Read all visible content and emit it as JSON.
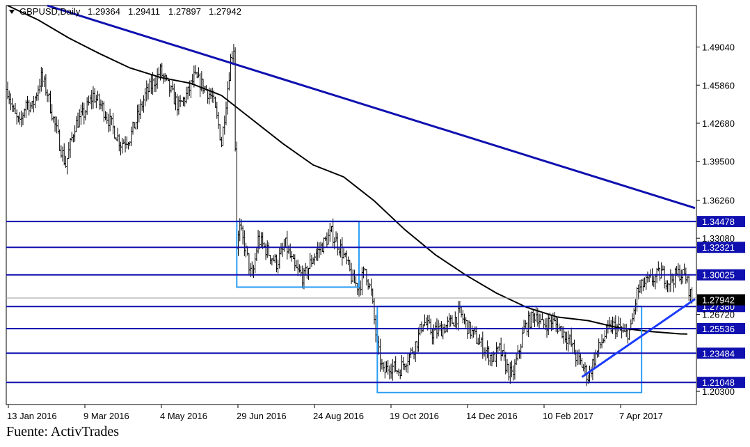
{
  "chart_data": {
    "type": "candlestick",
    "header": {
      "symbol": "GBPUSD,Daily",
      "open": "1.29364",
      "high": "1.29411",
      "low": "1.27897",
      "close": "1.27942"
    },
    "x_tick_labels": [
      "13 Jan 2016",
      "9 Mar 2016",
      "4 May 2016",
      "29 Jun 2016",
      "24 Aug 2016",
      "19 Oct 2016",
      "14 Dec 2016",
      "10 Feb 2017",
      "7 Apr 2017"
    ],
    "y_tick_labels": [
      "1.49040",
      "1.45860",
      "1.42680",
      "1.39500",
      "1.36260",
      "1.33080",
      "1.26720",
      "1.20300"
    ],
    "horizontal_levels": [
      "1.34478",
      "1.32321",
      "1.30025",
      "1.27380",
      "1.25536",
      "1.23484",
      "1.21048"
    ],
    "current_price": "1.27942",
    "ylim": [
      1.192,
      1.525
    ],
    "price_path": [
      [
        0,
        1.455
      ],
      [
        4,
        1.435
      ],
      [
        8,
        1.425
      ],
      [
        12,
        1.445
      ],
      [
        16,
        1.44
      ],
      [
        22,
        1.465
      ],
      [
        26,
        1.452
      ],
      [
        30,
        1.43
      ],
      [
        34,
        1.41
      ],
      [
        38,
        1.392
      ],
      [
        44,
        1.425
      ],
      [
        50,
        1.435
      ],
      [
        56,
        1.45
      ],
      [
        62,
        1.44
      ],
      [
        68,
        1.425
      ],
      [
        74,
        1.41
      ],
      [
        80,
        1.415
      ],
      [
        86,
        1.435
      ],
      [
        90,
        1.45
      ],
      [
        96,
        1.462
      ],
      [
        100,
        1.47
      ],
      [
        106,
        1.455
      ],
      [
        112,
        1.44
      ],
      [
        118,
        1.452
      ],
      [
        122,
        1.465
      ],
      [
        128,
        1.458
      ],
      [
        134,
        1.448
      ],
      [
        138,
        1.425
      ],
      [
        140,
        1.41
      ],
      [
        143,
        1.445
      ],
      [
        146,
        1.48
      ],
      [
        148,
        1.49
      ],
      [
        150,
        1.325
      ],
      [
        152,
        1.338
      ],
      [
        156,
        1.32
      ],
      [
        160,
        1.296
      ],
      [
        164,
        1.33
      ],
      [
        170,
        1.32
      ],
      [
        176,
        1.31
      ],
      [
        182,
        1.325
      ],
      [
        188,
        1.305
      ],
      [
        194,
        1.298
      ],
      [
        200,
        1.315
      ],
      [
        206,
        1.325
      ],
      [
        212,
        1.335
      ],
      [
        218,
        1.322
      ],
      [
        222,
        1.31
      ],
      [
        226,
        1.295
      ],
      [
        230,
        1.29
      ],
      [
        234,
        1.305
      ],
      [
        238,
        1.285
      ],
      [
        242,
        1.24
      ],
      [
        246,
        1.218
      ],
      [
        250,
        1.225
      ],
      [
        256,
        1.22
      ],
      [
        260,
        1.228
      ],
      [
        264,
        1.235
      ],
      [
        268,
        1.245
      ],
      [
        272,
        1.262
      ],
      [
        278,
        1.252
      ],
      [
        284,
        1.255
      ],
      [
        290,
        1.26
      ],
      [
        296,
        1.268
      ],
      [
        302,
        1.255
      ],
      [
        308,
        1.245
      ],
      [
        314,
        1.235
      ],
      [
        318,
        1.23
      ],
      [
        322,
        1.238
      ],
      [
        326,
        1.225
      ],
      [
        330,
        1.215
      ],
      [
        334,
        1.232
      ],
      [
        338,
        1.255
      ],
      [
        342,
        1.262
      ],
      [
        346,
        1.268
      ],
      [
        350,
        1.258
      ],
      [
        356,
        1.262
      ],
      [
        362,
        1.255
      ],
      [
        368,
        1.245
      ],
      [
        372,
        1.232
      ],
      [
        376,
        1.225
      ],
      [
        380,
        1.215
      ],
      [
        384,
        1.23
      ],
      [
        388,
        1.242
      ],
      [
        392,
        1.252
      ],
      [
        396,
        1.258
      ],
      [
        400,
        1.255
      ],
      [
        404,
        1.25
      ],
      [
        408,
        1.255
      ],
      [
        412,
        1.285
      ],
      [
        416,
        1.292
      ],
      [
        420,
        1.295
      ],
      [
        424,
        1.298
      ],
      [
        428,
        1.302
      ],
      [
        432,
        1.295
      ],
      [
        436,
        1.298
      ],
      [
        440,
        1.302
      ],
      [
        444,
        1.298
      ],
      [
        448,
        1.2794
      ]
    ],
    "ma_path": [
      [
        0,
        1.525
      ],
      [
        20,
        1.513
      ],
      [
        40,
        1.498
      ],
      [
        60,
        1.485
      ],
      [
        80,
        1.473
      ],
      [
        100,
        1.465
      ],
      [
        120,
        1.46
      ],
      [
        140,
        1.45
      ],
      [
        160,
        1.43
      ],
      [
        180,
        1.41
      ],
      [
        200,
        1.392
      ],
      [
        220,
        1.382
      ],
      [
        240,
        1.362
      ],
      [
        260,
        1.338
      ],
      [
        280,
        1.317
      ],
      [
        300,
        1.3
      ],
      [
        320,
        1.285
      ],
      [
        340,
        1.273
      ],
      [
        360,
        1.265
      ],
      [
        380,
        1.262
      ],
      [
        400,
        1.256
      ],
      [
        420,
        1.253
      ],
      [
        440,
        1.251
      ],
      [
        445,
        1.2508
      ]
    ],
    "trendlines": [
      {
        "from": [
          26,
          1.525
        ],
        "to": [
          450,
          1.356
        ],
        "color": "#1010b0"
      },
      {
        "from": [
          376,
          1.215
        ],
        "to": [
          450,
          1.28
        ],
        "color": "#1a3aff"
      }
    ],
    "boxes": [
      {
        "x_start": 150,
        "x_end": 230,
        "y_low": 1.29,
        "y_high": 1.345,
        "color": "#2a9df4"
      },
      {
        "x_start": 242,
        "x_end": 415,
        "y_low": 1.202,
        "y_high": 1.274,
        "color": "#2a9df4"
      }
    ],
    "colors": {
      "candle": "#000000",
      "level_line": "#1010b0",
      "label_box_fill": "#1010b0",
      "label_text": "#ffffff",
      "price_label_fill": "#000000",
      "box_outline": "#2a9df4",
      "ma_line": "#000000"
    }
  },
  "source_text": "Fuente: ActivTrades"
}
